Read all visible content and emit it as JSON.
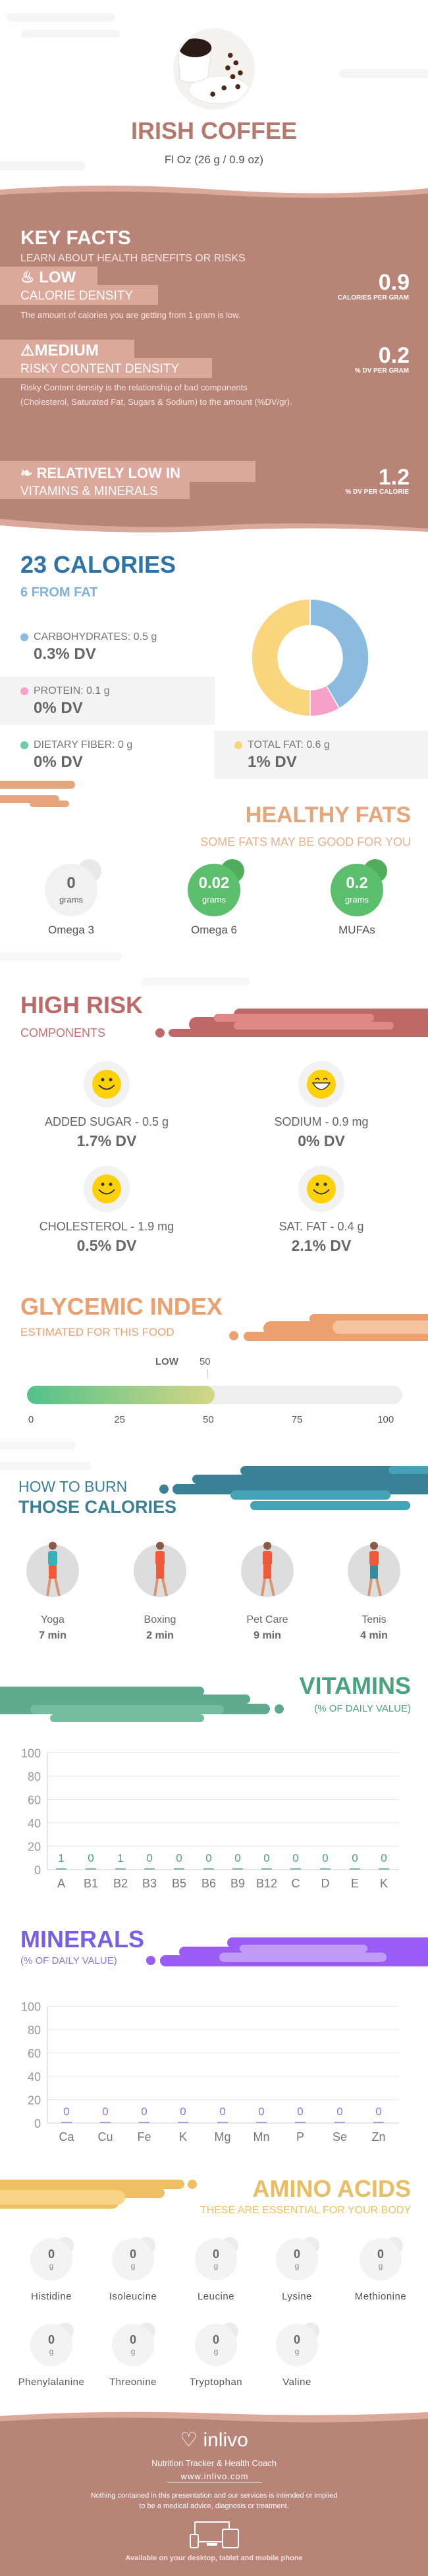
{
  "header": {
    "title": "IRISH COFFEE",
    "serving": "Fl Oz (26 g / 0.9 oz)"
  },
  "key_facts": {
    "title": "KEY FACTS",
    "subtitle": "LEARN ABOUT HEALTH BENEFITS OR RISKS",
    "calorie": {
      "level": "LOW",
      "label": "CALORIE DENSITY",
      "value": "0.9",
      "unit": "CALORIES PER GRAM",
      "desc": "The amount of calories you are getting from 1 gram is low."
    },
    "risky": {
      "level": "MEDIUM",
      "label": "RISKY CONTENT DENSITY",
      "value": "0.2",
      "unit": "% DV PER GRAM",
      "desc1": "Risky Content density is the relationship of bad components",
      "desc2": "(Cholesterol, Saturated Fat, Sugars & Sodium) to the amount (%DV/gr)."
    },
    "vitamins": {
      "level": "RELATIVELY LOW  IN",
      "label": "VITAMINS & MINERALS",
      "value": "1.2",
      "unit": "% DV PER CALORIE"
    }
  },
  "calories": {
    "title": "23 CALORIES",
    "from_fat": "6 FROM FAT",
    "items": [
      {
        "label": "CARBOHYDRATES: 0.5 g",
        "dv": "0.3% DV",
        "color": "#8cbbe0",
        "grams": 0.5
      },
      {
        "label": "PROTEIN: 0.1 g",
        "dv": "0% DV",
        "color": "#f7a1c8",
        "grams": 0.1
      },
      {
        "label": "DIETARY FIBER: 0 g",
        "dv": "0% DV",
        "color": "#6ccf9f",
        "grams": 0
      },
      {
        "label": "TOTAL FAT: 0.6 g",
        "dv": "1% DV",
        "color": "#f9d57e",
        "grams": 0.6
      }
    ]
  },
  "healthy_fats": {
    "title": "HEALTHY FATS",
    "subtitle": "SOME FATS MAY BE GOOD FOR YOU",
    "unit": "grams",
    "items": [
      {
        "name": "Omega 3",
        "value": "0"
      },
      {
        "name": "Omega 6",
        "value": "0.02"
      },
      {
        "name": "MUFAs",
        "value": "0.2"
      }
    ]
  },
  "high_risk": {
    "title": "HIGH RISK",
    "subtitle": "COMPONENTS",
    "items": [
      {
        "label": "ADDED SUGAR - 0.5 g",
        "dv": "1.7% DV",
        "icon": "smile"
      },
      {
        "label": "SODIUM - 0.9 mg",
        "dv": "0% DV",
        "icon": "grin"
      },
      {
        "label": "CHOLESTEROL - 1.9 mg",
        "dv": "0.5% DV",
        "icon": "smile"
      },
      {
        "label": "SAT. FAT - 0.4 g",
        "dv": "2.1% DV",
        "icon": "smile"
      }
    ]
  },
  "glycemic": {
    "title": "GLYCEMIC INDEX",
    "subtitle": "ESTIMATED FOR THIS FOOD",
    "level": "LOW",
    "value": 50,
    "value_label": "50",
    "ticks": [
      "0",
      "25",
      "50",
      "75",
      "100"
    ]
  },
  "burn": {
    "title1": "HOW TO BURN",
    "title2": "THOSE CALORIES",
    "items": [
      {
        "name": "Yoga",
        "time": "7 min"
      },
      {
        "name": "Boxing",
        "time": "2 min"
      },
      {
        "name": "Pet Care",
        "time": "9 min"
      },
      {
        "name": "Tenis",
        "time": "4 min"
      }
    ]
  },
  "vitamins_title": "VITAMINS",
  "vitamins_sub": "(% OF DAILY VALUE)",
  "minerals_title": "MINERALS",
  "minerals_sub": "(% OF DAILY VALUE)",
  "chart_data": [
    {
      "type": "bar",
      "title": "VITAMINS",
      "ylabel": "(% OF DAILY VALUE)",
      "ylim": [
        0,
        100
      ],
      "yticks": [
        "0",
        "20",
        "40",
        "60",
        "80",
        "100"
      ],
      "categories": [
        "A",
        "B1",
        "B2",
        "B3",
        "B5",
        "B6",
        "B9",
        "B12",
        "C",
        "D",
        "E",
        "K"
      ],
      "values": [
        1,
        0,
        1,
        0,
        0,
        0,
        0,
        0,
        0,
        0,
        0,
        0
      ],
      "color": "#4aa37f"
    },
    {
      "type": "bar",
      "title": "MINERALS",
      "ylabel": "(% OF DAILY VALUE)",
      "ylim": [
        0,
        100
      ],
      "yticks": [
        "0",
        "20",
        "40",
        "60",
        "80",
        "100"
      ],
      "categories": [
        "Ca",
        "Cu",
        "Fe",
        "K",
        "Mg",
        "Mn",
        "P",
        "Se",
        "Zn"
      ],
      "values": [
        0,
        0,
        0,
        0,
        0,
        0,
        0,
        0,
        0
      ],
      "color": "#8a78e0"
    }
  ],
  "amino": {
    "title": "AMINO ACIDS",
    "subtitle": "THESE ARE ESSENTIAL FOR YOUR BODY",
    "unit": "g",
    "items": [
      {
        "name": "Histidine",
        "value": "0"
      },
      {
        "name": "Isoleucine",
        "value": "0"
      },
      {
        "name": "Leucine",
        "value": "0"
      },
      {
        "name": "Lysine",
        "value": "0"
      },
      {
        "name": "Methionine",
        "value": "0"
      },
      {
        "name": "Phenylalanine",
        "value": "0"
      },
      {
        "name": "Threonine",
        "value": "0"
      },
      {
        "name": "Tryptophan",
        "value": "0"
      },
      {
        "name": "Valine",
        "value": "0"
      }
    ]
  },
  "footer": {
    "brand": "inlivo",
    "tagline": "Nutrition Tracker & Health Coach",
    "url": "www.inlivo.com",
    "disclaimer1": "Nothing contained in this presentation and our services is intended or implied",
    "disclaimer2": "to be a medical advice, diagnosis or treatment.",
    "available": "Available on your desktop, tablet and mobile phone"
  }
}
